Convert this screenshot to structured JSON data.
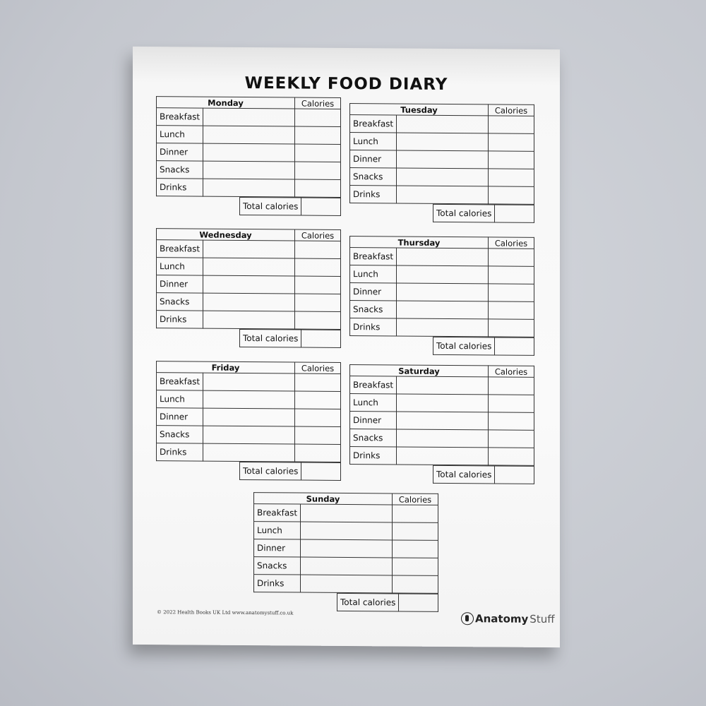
{
  "title": "WEEKLY FOOD DIARY",
  "calories_header": "Calories",
  "meals": [
    "Breakfast",
    "Lunch",
    "Dinner",
    "Snacks",
    "Drinks"
  ],
  "total_label": "Total calories",
  "days": [
    "Monday",
    "Tuesday",
    "Wednesday",
    "Thursday",
    "Friday",
    "Saturday",
    "Sunday"
  ],
  "footer": "© 2022 Health Books UK Ltd www.anatomystuff.co.uk",
  "logo": {
    "bold": "Anatomy",
    "light": "Stuff"
  }
}
